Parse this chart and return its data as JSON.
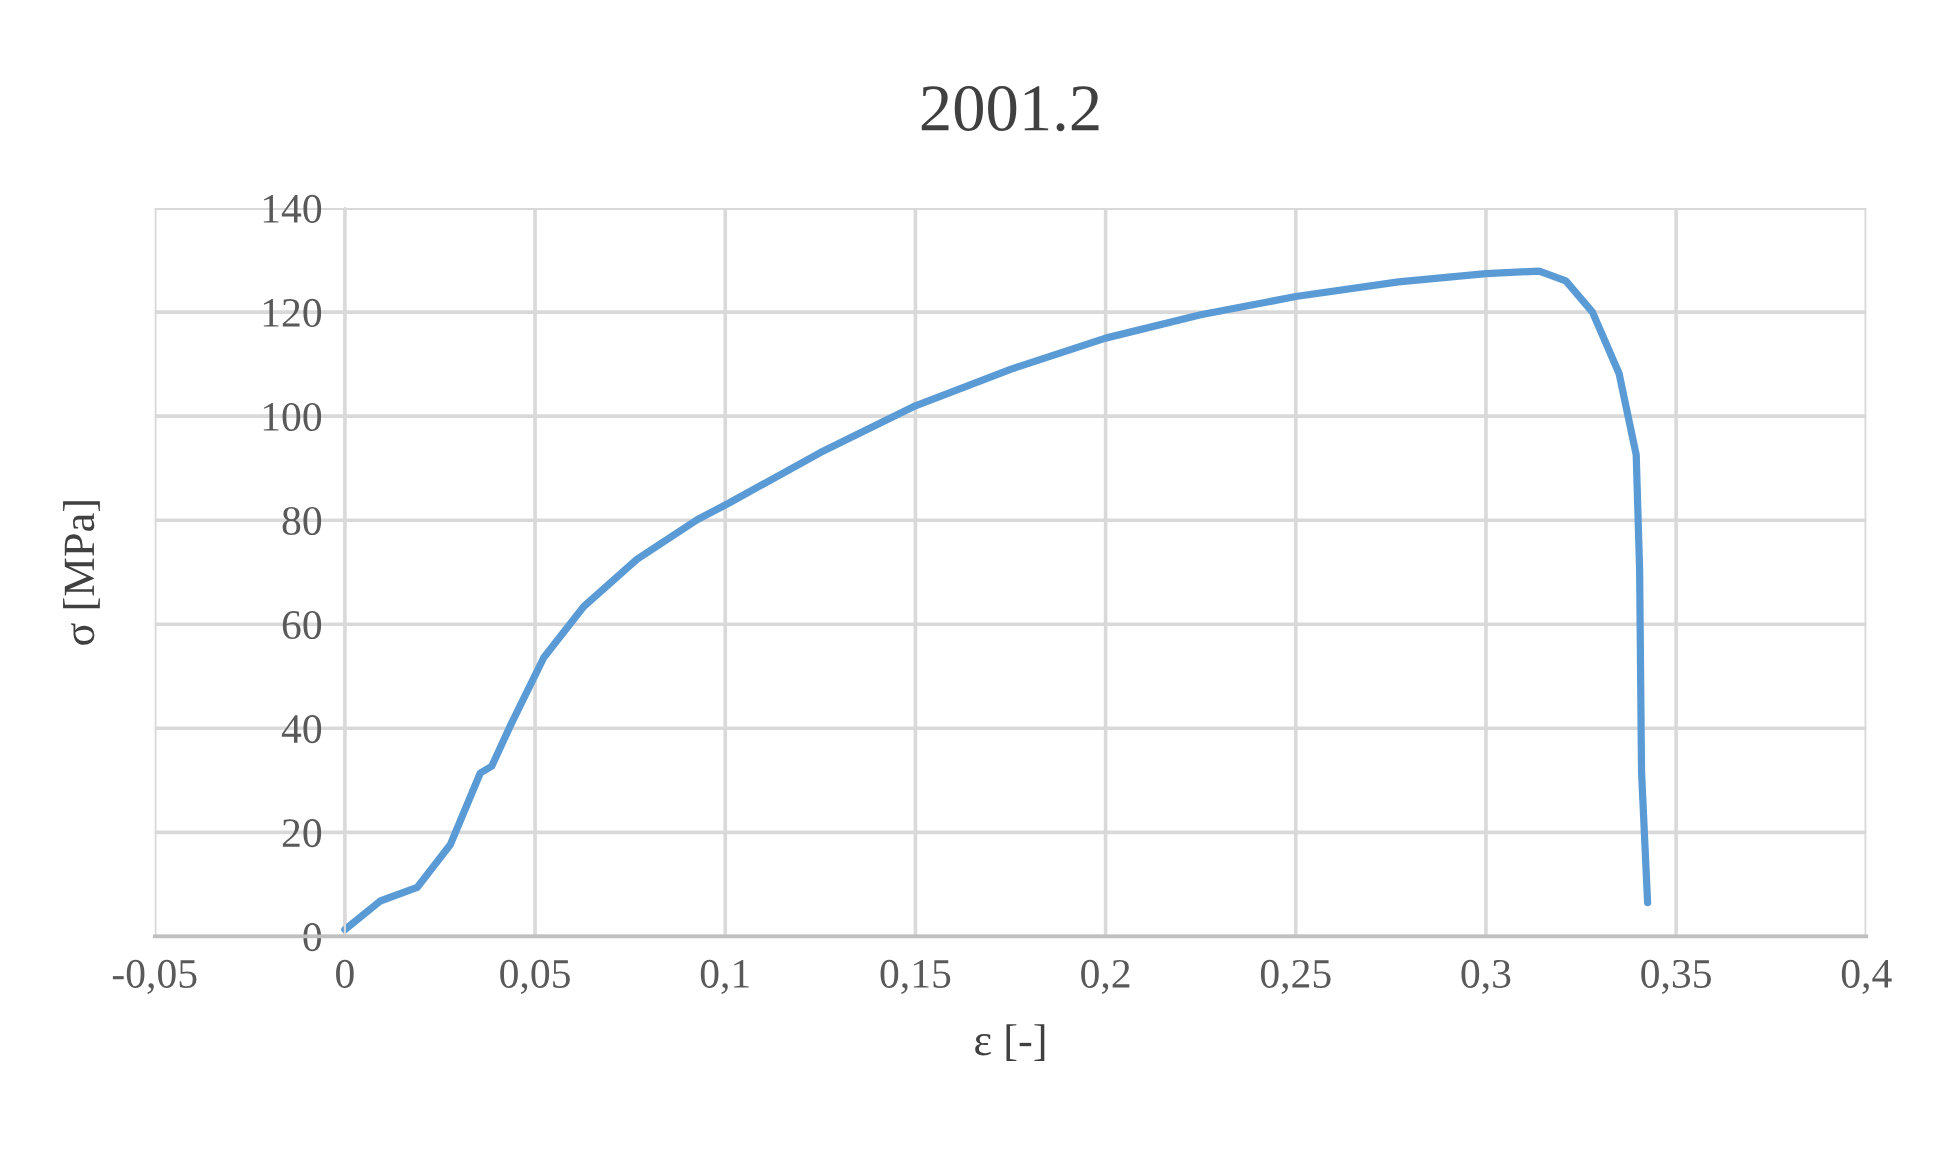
{
  "chart_data": {
    "type": "line",
    "title": "2001.2",
    "xlabel": "ε [-]",
    "ylabel": "σ [MPa]",
    "series": [
      {
        "color": "#5b9bd5",
        "x": [
          0,
          0.0093,
          0.019,
          0.0277,
          0.0356,
          0.0386,
          0.0435,
          0.0523,
          0.0628,
          0.0768,
          0.0926,
          0.101,
          0.125,
          0.15,
          0.175,
          0.2,
          0.225,
          0.25,
          0.277,
          0.3,
          0.314,
          0.321,
          0.328,
          0.335,
          0.3395,
          0.3404,
          0.3409,
          0.3425
        ],
        "values": [
          1.3,
          6.8,
          9.4,
          17.6,
          31.4,
          32.7,
          40.5,
          53.6,
          63.4,
          72.5,
          80.1,
          83.3,
          93,
          102,
          109,
          115,
          119.5,
          123,
          125.8,
          127.4,
          127.9,
          126,
          120,
          108.2,
          92.6,
          70.5,
          31.7,
          6.5
        ]
      }
    ],
    "xlim": [
      -0.05,
      0.4
    ],
    "xticks": [
      {
        "value": -0.05,
        "label": "-0,05"
      },
      0,
      {
        "value": 0.05,
        "label": "0,05"
      },
      {
        "value": 0.1,
        "label": "0,1"
      },
      {
        "value": 0.15,
        "label": "0,15"
      },
      {
        "value": 0.2,
        "label": "0,2"
      },
      {
        "value": 0.25,
        "label": "0,25"
      },
      {
        "value": 0.3,
        "label": "0,3"
      },
      {
        "value": 0.35,
        "label": "0,35"
      },
      {
        "value": 0.4,
        "label": "0,4"
      }
    ],
    "ylim": [
      0,
      140
    ],
    "yticks": [
      0,
      20,
      40,
      60,
      80,
      100,
      120,
      140
    ],
    "grid": true,
    "marker": "none",
    "line_style": "solid"
  }
}
